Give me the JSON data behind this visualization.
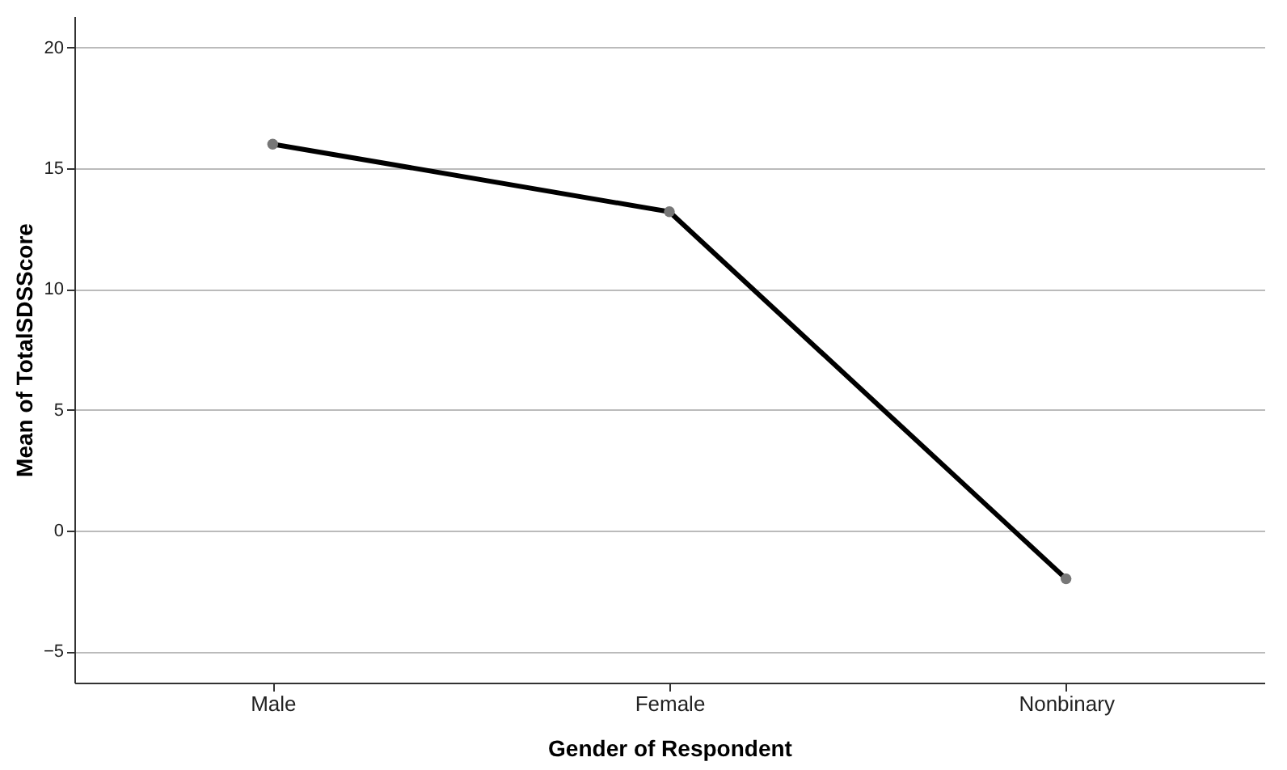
{
  "chart_data": {
    "type": "line",
    "xlabel": "Gender of Respondent",
    "ylabel": "Mean of TotalSDSScore",
    "categories": [
      "Male",
      "Female",
      "Nonbinary"
    ],
    "series": [
      {
        "color": "#000000",
        "values": [
          16.0,
          13.2,
          -2.0
        ]
      }
    ],
    "ylim": [
      -6.3,
      21.3
    ],
    "yticks": [
      -5,
      0,
      5,
      10,
      15,
      20
    ],
    "grid": "y",
    "marker": "circle",
    "line_style": "solid"
  }
}
